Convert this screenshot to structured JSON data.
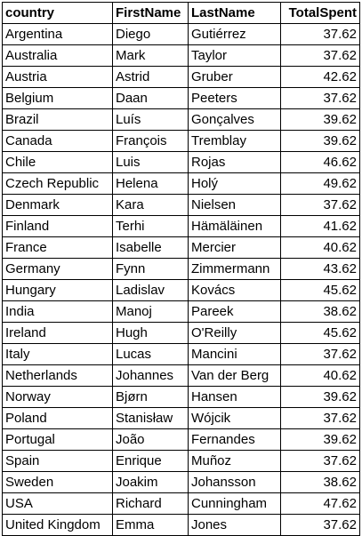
{
  "headers": [
    "country",
    "FirstName",
    "LastName",
    "TotalSpent"
  ],
  "rows": [
    [
      "Argentina",
      "Diego",
      "Gutiérrez",
      "37.62"
    ],
    [
      "Australia",
      "Mark",
      "Taylor",
      "37.62"
    ],
    [
      "Austria",
      "Astrid",
      "Gruber",
      "42.62"
    ],
    [
      "Belgium",
      "Daan",
      "Peeters",
      "37.62"
    ],
    [
      "Brazil",
      "Luís",
      "Gonçalves",
      "39.62"
    ],
    [
      "Canada",
      "François",
      "Tremblay",
      "39.62"
    ],
    [
      "Chile",
      "Luis",
      "Rojas",
      "46.62"
    ],
    [
      "Czech Republic",
      "Helena",
      "Holý",
      "49.62"
    ],
    [
      "Denmark",
      "Kara",
      "Nielsen",
      "37.62"
    ],
    [
      "Finland",
      "Terhi",
      "Hämäläinen",
      "41.62"
    ],
    [
      "France",
      "Isabelle",
      "Mercier",
      "40.62"
    ],
    [
      "Germany",
      "Fynn",
      "Zimmermann",
      "43.62"
    ],
    [
      "Hungary",
      "Ladislav",
      "Kovács",
      "45.62"
    ],
    [
      "India",
      "Manoj",
      "Pareek",
      "38.62"
    ],
    [
      "Ireland",
      "Hugh",
      "O'Reilly",
      "45.62"
    ],
    [
      "Italy",
      "Lucas",
      "Mancini",
      "37.62"
    ],
    [
      "Netherlands",
      "Johannes",
      "Van der Berg",
      "40.62"
    ],
    [
      "Norway",
      "Bjørn",
      "Hansen",
      "39.62"
    ],
    [
      "Poland",
      "Stanisław",
      "Wójcik",
      "37.62"
    ],
    [
      "Portugal",
      "João",
      "Fernandes",
      "39.62"
    ],
    [
      "Spain",
      "Enrique",
      "Muñoz",
      "37.62"
    ],
    [
      "Sweden",
      "Joakim",
      "Johansson",
      "38.62"
    ],
    [
      "USA",
      "Richard",
      "Cunningham",
      "47.62"
    ],
    [
      "United Kingdom",
      "Emma",
      "Jones",
      "37.62"
    ]
  ]
}
